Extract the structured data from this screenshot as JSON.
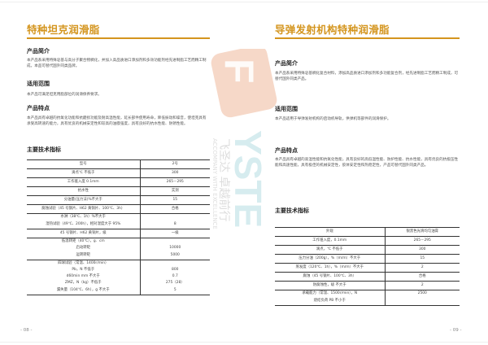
{
  "left": {
    "title": "特种坦克润滑脂",
    "intro_h": "产品简介",
    "intro": "本产品系采用特殊皂基与高分子聚合物稠化，并加入高品质进口添加剂和多效功能剂经先进制脂工艺而精工制成，本品可替代国外同类品牌。",
    "scope_h": "适用范围",
    "scope": "本产品可满足坦克用脂部位的润滑保养要求。",
    "feat_h": "产品特点",
    "feat": "本产品具有卓越的抗氧化功能和抗磨损功能及耐高温性能，延长部件使用寿命，降低振动和噪音，使坦克具有承受高转速的能力，具有优良的机械安定性和较高的油膜强度，具有良好的抗水性能、防锈性能。",
    "spec_h": "主要技术指标",
    "rows": [
      [
        "型号",
        "2号"
      ],
      [
        "滴点℃ 不低于",
        "300"
      ],
      [
        "工作锥入度 0.1mm",
        "265－295"
      ],
      [
        "抗水性",
        "实测"
      ],
      [
        "分油量(压力法)%不大于",
        "15"
      ],
      [
        "腐蚀试验（45 号钢片、H62 黄铜片、100℃、3h）",
        "合格"
      ],
      [
        "水淋（38℃、1h）%不大于",
        ""
      ],
      [
        "湿热试验（49℃、200h），相对湿度大于 95%",
        "8"
      ],
      [
        "45 号钢片、H62 黄铜片，级",
        "一级"
      ],
      [
        "低温转矩（40℃），g．cm",
        ""
      ],
      [
        "启动转矩",
        "10000"
      ],
      [
        "运转转矩",
        "5000"
      ],
      [
        "四球试验（常温、1400r/min）",
        ""
      ],
      [
        "Pb，N 不低于",
        "800"
      ],
      [
        "d60min mm 不大于",
        "0.7"
      ],
      [
        "ZMZ，N（kg）不低于",
        "275（28）"
      ],
      [
        "漏失量（104℃、6h），g 不大于",
        "5"
      ]
    ],
    "page": "- 08 -"
  },
  "right": {
    "title": "导弹发射机构特种润滑脂",
    "intro_h": "产品简介",
    "intro": "本产品系采用特殊皂基稠化复合材料，添加高品质进口添加剂和多功能复合剂，经先进制脂工艺而精工制成，可替代国外同类产品。",
    "scope_h": "适用范围",
    "scope": "本产品适用于导弹发射机构的启动机导轨，供弹机等部件的润滑保护。",
    "feat_h": "产品特点",
    "feat": "本产品具有卓越的高温性能和抗氧化性能，具有良好的高低温性能、防护性能、抗水性能，具有优良的抗极压性能和高速性能，具有极佳的机械安定性，胶体安定性和热稳定性，产品可替代国外同类产品。",
    "spec_h": "主要技术指标",
    "rows": [
      [
        "外观",
        "银黑色光滑均匀油膏"
      ],
      [
        "工作锥入度，0.1mm",
        "265－295"
      ],
      [
        "滴点，℃ 不低于",
        "300"
      ],
      [
        "压力分油（200g），%（m/m）不大于",
        "15"
      ],
      [
        "蒸发度（120℃、1h），%（m/m）不大于",
        "2"
      ],
      [
        "腐蚀（45 号钢片、100℃、3h）",
        "合格"
      ],
      [
        "防腐蚀性，级 不大于",
        "2"
      ],
      [
        "承载能力（常温、1500r/min），N",
        "2500"
      ],
      [
        "烧结负荷 PB 不小于",
        ""
      ]
    ],
    "page": "- 09 -"
  },
  "watermark": {
    "logo": "F.YSTE",
    "slogan": "飞圣达 卓越前行",
    "slogan_en": "ACCOMPANY WITH EXCELLENCE",
    "colors": {
      "orange": "#f3cdb8",
      "teal": "#cfe8ec"
    }
  },
  "colors": {
    "accent": "#d4951e"
  }
}
